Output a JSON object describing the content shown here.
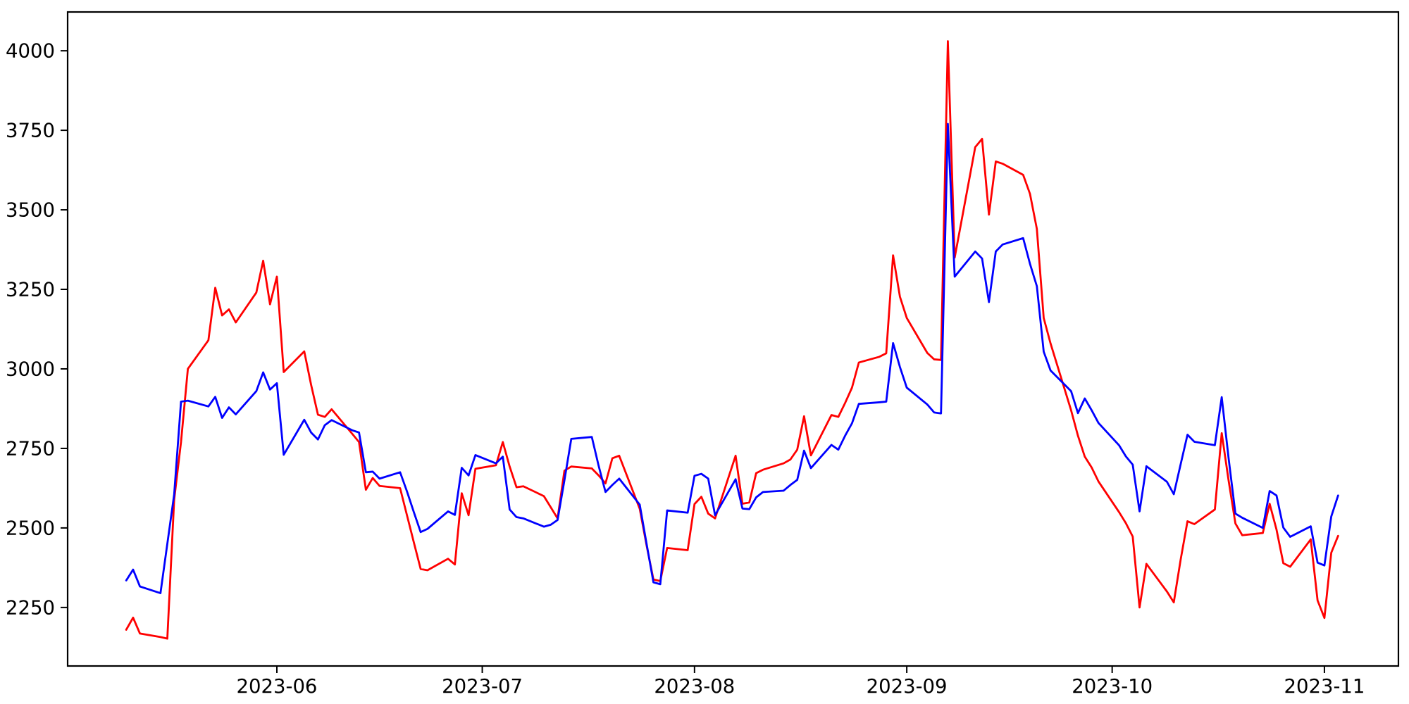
{
  "figure": {
    "background_color": "#ffffff",
    "spine_color": "#000000",
    "tick_color": "#000000",
    "tick_label_color": "#000000"
  },
  "chart_data": {
    "type": "line",
    "title": "",
    "xlabel": "",
    "ylabel": "",
    "grid": false,
    "legend": "none",
    "x_tick_labels": [
      "2023-06",
      "2023-07",
      "2023-08",
      "2023-09",
      "2023-10",
      "2023-11"
    ],
    "x_tick_dates": [
      "2023-06-01",
      "2023-07-01",
      "2023-08-01",
      "2023-09-01",
      "2023-10-01",
      "2023-11-01"
    ],
    "y_tick_values": [
      2250,
      2500,
      2750,
      3000,
      3250,
      3500,
      3750,
      4000
    ],
    "xlim_dates": [
      "2023-05-01",
      "2023-11-12"
    ],
    "xlim_day_offsets_from_june1": [
      -30.56,
      163.81
    ],
    "ylim": [
      2066,
      4122
    ],
    "date_range_of_data": [
      "2023-05-10",
      "2023-11-03"
    ],
    "series": [
      {
        "name": "red-series",
        "color": "#ff0000",
        "points": [
          [
            "2023-05-10",
            2180
          ],
          [
            "2023-05-11",
            2218
          ],
          [
            "2023-05-12",
            2168
          ],
          [
            "2023-05-15",
            2157
          ],
          [
            "2023-05-16",
            2152
          ],
          [
            "2023-05-17",
            2589
          ],
          [
            "2023-05-18",
            2770
          ],
          [
            "2023-05-19",
            3000
          ],
          [
            "2023-05-22",
            3090
          ],
          [
            "2023-05-23",
            3255
          ],
          [
            "2023-05-24",
            3168
          ],
          [
            "2023-05-25",
            3187
          ],
          [
            "2023-05-26",
            3146
          ],
          [
            "2023-05-29",
            3240
          ],
          [
            "2023-05-30",
            3340
          ],
          [
            "2023-05-31",
            3203
          ],
          [
            "2023-06-01",
            3290
          ],
          [
            "2023-06-02",
            2990
          ],
          [
            "2023-06-05",
            3055
          ],
          [
            "2023-06-06",
            2950
          ],
          [
            "2023-06-07",
            2856
          ],
          [
            "2023-06-08",
            2849
          ],
          [
            "2023-06-09",
            2873
          ],
          [
            "2023-06-12",
            2796
          ],
          [
            "2023-06-13",
            2770
          ],
          [
            "2023-06-14",
            2620
          ],
          [
            "2023-06-15",
            2657
          ],
          [
            "2023-06-16",
            2632
          ],
          [
            "2023-06-19",
            2625
          ],
          [
            "2023-06-20",
            2540
          ],
          [
            "2023-06-21",
            2455
          ],
          [
            "2023-06-22",
            2371
          ],
          [
            "2023-06-23",
            2367
          ],
          [
            "2023-06-26",
            2403
          ],
          [
            "2023-06-27",
            2385
          ],
          [
            "2023-06-28",
            2609
          ],
          [
            "2023-06-29",
            2540
          ],
          [
            "2023-06-30",
            2686
          ],
          [
            "2023-07-03",
            2697
          ],
          [
            "2023-07-04",
            2770
          ],
          [
            "2023-07-05",
            2693
          ],
          [
            "2023-07-06",
            2628
          ],
          [
            "2023-07-07",
            2631
          ],
          [
            "2023-07-10",
            2600
          ],
          [
            "2023-07-11",
            2565
          ],
          [
            "2023-07-12",
            2530
          ],
          [
            "2023-07-13",
            2680
          ],
          [
            "2023-07-14",
            2693
          ],
          [
            "2023-07-17",
            2687
          ],
          [
            "2023-07-18",
            2665
          ],
          [
            "2023-07-19",
            2640
          ],
          [
            "2023-07-20",
            2719
          ],
          [
            "2023-07-21",
            2727
          ],
          [
            "2023-07-24",
            2560
          ],
          [
            "2023-07-25",
            2445
          ],
          [
            "2023-07-26",
            2338
          ],
          [
            "2023-07-27",
            2333
          ],
          [
            "2023-07-28",
            2437
          ],
          [
            "2023-07-31",
            2430
          ],
          [
            "2023-08-01",
            2575
          ],
          [
            "2023-08-02",
            2598
          ],
          [
            "2023-08-03",
            2545
          ],
          [
            "2023-08-04",
            2530
          ],
          [
            "2023-08-07",
            2727
          ],
          [
            "2023-08-08",
            2576
          ],
          [
            "2023-08-09",
            2580
          ],
          [
            "2023-08-10",
            2672
          ],
          [
            "2023-08-11",
            2683
          ],
          [
            "2023-08-14",
            2703
          ],
          [
            "2023-08-15",
            2715
          ],
          [
            "2023-08-16",
            2746
          ],
          [
            "2023-08-17",
            2851
          ],
          [
            "2023-08-18",
            2728
          ],
          [
            "2023-08-21",
            2855
          ],
          [
            "2023-08-22",
            2849
          ],
          [
            "2023-08-23",
            2893
          ],
          [
            "2023-08-24",
            2941
          ],
          [
            "2023-08-25",
            3020
          ],
          [
            "2023-08-28",
            3038
          ],
          [
            "2023-08-29",
            3049
          ],
          [
            "2023-08-30",
            3357
          ],
          [
            "2023-08-31",
            3227
          ],
          [
            "2023-09-01",
            3160
          ],
          [
            "2023-09-04",
            3050
          ],
          [
            "2023-09-05",
            3030
          ],
          [
            "2023-09-06",
            3028
          ],
          [
            "2023-09-07",
            4030
          ],
          [
            "2023-09-08",
            3350
          ],
          [
            "2023-09-11",
            3697
          ],
          [
            "2023-09-12",
            3723
          ],
          [
            "2023-09-13",
            3485
          ],
          [
            "2023-09-14",
            3652
          ],
          [
            "2023-09-15",
            3645
          ],
          [
            "2023-09-18",
            3610
          ],
          [
            "2023-09-19",
            3550
          ],
          [
            "2023-09-20",
            3440
          ],
          [
            "2023-09-21",
            3160
          ],
          [
            "2023-09-22",
            3080
          ],
          [
            "2023-09-25",
            2870
          ],
          [
            "2023-09-26",
            2790
          ],
          [
            "2023-09-27",
            2724
          ],
          [
            "2023-09-28",
            2690
          ],
          [
            "2023-09-29",
            2646
          ],
          [
            "2023-10-02",
            2550
          ],
          [
            "2023-10-03",
            2515
          ],
          [
            "2023-10-04",
            2473
          ],
          [
            "2023-10-05",
            2250
          ],
          [
            "2023-10-06",
            2387
          ],
          [
            "2023-10-09",
            2300
          ],
          [
            "2023-10-10",
            2266
          ],
          [
            "2023-10-11",
            2400
          ],
          [
            "2023-10-12",
            2521
          ],
          [
            "2023-10-13",
            2512
          ],
          [
            "2023-10-16",
            2558
          ],
          [
            "2023-10-17",
            2798
          ],
          [
            "2023-10-18",
            2650
          ],
          [
            "2023-10-19",
            2514
          ],
          [
            "2023-10-20",
            2477
          ],
          [
            "2023-10-23",
            2484
          ],
          [
            "2023-10-24",
            2576
          ],
          [
            "2023-10-25",
            2495
          ],
          [
            "2023-10-26",
            2389
          ],
          [
            "2023-10-27",
            2378
          ],
          [
            "2023-10-30",
            2464
          ],
          [
            "2023-10-31",
            2272
          ],
          [
            "2023-11-01",
            2217
          ],
          [
            "2023-11-02",
            2422
          ],
          [
            "2023-11-03",
            2475
          ]
        ]
      },
      {
        "name": "blue-series",
        "color": "#0000ff",
        "points": [
          [
            "2023-05-10",
            2335
          ],
          [
            "2023-05-11",
            2369
          ],
          [
            "2023-05-12",
            2316
          ],
          [
            "2023-05-15",
            2295
          ],
          [
            "2023-05-16",
            2450
          ],
          [
            "2023-05-17",
            2605
          ],
          [
            "2023-05-18",
            2897
          ],
          [
            "2023-05-19",
            2900
          ],
          [
            "2023-05-22",
            2882
          ],
          [
            "2023-05-23",
            2912
          ],
          [
            "2023-05-24",
            2846
          ],
          [
            "2023-05-25",
            2879
          ],
          [
            "2023-05-26",
            2857
          ],
          [
            "2023-05-29",
            2930
          ],
          [
            "2023-05-30",
            2989
          ],
          [
            "2023-05-31",
            2935
          ],
          [
            "2023-06-01",
            2955
          ],
          [
            "2023-06-02",
            2730
          ],
          [
            "2023-06-05",
            2840
          ],
          [
            "2023-06-06",
            2800
          ],
          [
            "2023-06-07",
            2778
          ],
          [
            "2023-06-08",
            2823
          ],
          [
            "2023-06-09",
            2839
          ],
          [
            "2023-06-12",
            2807
          ],
          [
            "2023-06-13",
            2800
          ],
          [
            "2023-06-14",
            2675
          ],
          [
            "2023-06-15",
            2677
          ],
          [
            "2023-06-16",
            2655
          ],
          [
            "2023-06-19",
            2675
          ],
          [
            "2023-06-20",
            2615
          ],
          [
            "2023-06-21",
            2550
          ],
          [
            "2023-06-22",
            2487
          ],
          [
            "2023-06-23",
            2497
          ],
          [
            "2023-06-26",
            2552
          ],
          [
            "2023-06-27",
            2541
          ],
          [
            "2023-06-28",
            2689
          ],
          [
            "2023-06-29",
            2665
          ],
          [
            "2023-06-30",
            2729
          ],
          [
            "2023-07-03",
            2703
          ],
          [
            "2023-07-04",
            2724
          ],
          [
            "2023-07-05",
            2558
          ],
          [
            "2023-07-06",
            2534
          ],
          [
            "2023-07-07",
            2530
          ],
          [
            "2023-07-10",
            2504
          ],
          [
            "2023-07-11",
            2510
          ],
          [
            "2023-07-12",
            2525
          ],
          [
            "2023-07-13",
            2650
          ],
          [
            "2023-07-14",
            2780
          ],
          [
            "2023-07-17",
            2786
          ],
          [
            "2023-07-18",
            2695
          ],
          [
            "2023-07-19",
            2613
          ],
          [
            "2023-07-20",
            2635
          ],
          [
            "2023-07-21",
            2655
          ],
          [
            "2023-07-24",
            2573
          ],
          [
            "2023-07-25",
            2450
          ],
          [
            "2023-07-26",
            2329
          ],
          [
            "2023-07-27",
            2323
          ],
          [
            "2023-07-28",
            2555
          ],
          [
            "2023-07-31",
            2548
          ],
          [
            "2023-08-01",
            2664
          ],
          [
            "2023-08-02",
            2670
          ],
          [
            "2023-08-03",
            2655
          ],
          [
            "2023-08-04",
            2540
          ],
          [
            "2023-08-07",
            2653
          ],
          [
            "2023-08-08",
            2561
          ],
          [
            "2023-08-09",
            2559
          ],
          [
            "2023-08-10",
            2596
          ],
          [
            "2023-08-11",
            2613
          ],
          [
            "2023-08-14",
            2617
          ],
          [
            "2023-08-15",
            2635
          ],
          [
            "2023-08-16",
            2651
          ],
          [
            "2023-08-17",
            2743
          ],
          [
            "2023-08-18",
            2688
          ],
          [
            "2023-08-21",
            2761
          ],
          [
            "2023-08-22",
            2746
          ],
          [
            "2023-08-23",
            2790
          ],
          [
            "2023-08-24",
            2829
          ],
          [
            "2023-08-25",
            2890
          ],
          [
            "2023-08-28",
            2895
          ],
          [
            "2023-08-29",
            2897
          ],
          [
            "2023-08-30",
            3081
          ],
          [
            "2023-08-31",
            3006
          ],
          [
            "2023-09-01",
            2941
          ],
          [
            "2023-09-04",
            2888
          ],
          [
            "2023-09-05",
            2863
          ],
          [
            "2023-09-06",
            2860
          ],
          [
            "2023-09-07",
            3770
          ],
          [
            "2023-09-08",
            3290
          ],
          [
            "2023-09-11",
            3369
          ],
          [
            "2023-09-12",
            3347
          ],
          [
            "2023-09-13",
            3210
          ],
          [
            "2023-09-14",
            3369
          ],
          [
            "2023-09-15",
            3391
          ],
          [
            "2023-09-18",
            3411
          ],
          [
            "2023-09-19",
            3330
          ],
          [
            "2023-09-20",
            3260
          ],
          [
            "2023-09-21",
            3054
          ],
          [
            "2023-09-22",
            2995
          ],
          [
            "2023-09-25",
            2930
          ],
          [
            "2023-09-26",
            2861
          ],
          [
            "2023-09-27",
            2907
          ],
          [
            "2023-09-28",
            2870
          ],
          [
            "2023-09-29",
            2830
          ],
          [
            "2023-10-02",
            2760
          ],
          [
            "2023-10-03",
            2725
          ],
          [
            "2023-10-04",
            2699
          ],
          [
            "2023-10-05",
            2552
          ],
          [
            "2023-10-06",
            2694
          ],
          [
            "2023-10-09",
            2645
          ],
          [
            "2023-10-10",
            2606
          ],
          [
            "2023-10-11",
            2700
          ],
          [
            "2023-10-12",
            2793
          ],
          [
            "2023-10-13",
            2771
          ],
          [
            "2023-10-16",
            2760
          ],
          [
            "2023-10-17",
            2911
          ],
          [
            "2023-10-18",
            2720
          ],
          [
            "2023-10-19",
            2545
          ],
          [
            "2023-10-20",
            2532
          ],
          [
            "2023-10-23",
            2500
          ],
          [
            "2023-10-24",
            2616
          ],
          [
            "2023-10-25",
            2602
          ],
          [
            "2023-10-26",
            2501
          ],
          [
            "2023-10-27",
            2472
          ],
          [
            "2023-10-30",
            2505
          ],
          [
            "2023-10-31",
            2391
          ],
          [
            "2023-11-01",
            2382
          ],
          [
            "2023-11-02",
            2536
          ],
          [
            "2023-11-03",
            2602
          ]
        ]
      }
    ]
  }
}
